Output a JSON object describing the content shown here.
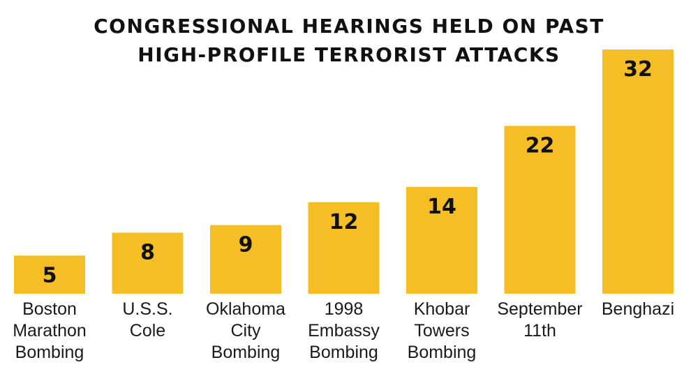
{
  "chart_data": {
    "type": "bar",
    "title_lines": [
      "CONGRESSIONAL HEARINGS HELD ON PAST",
      "HIGH-PROFILE TERRORIST ATTACKS"
    ],
    "categories": [
      [
        "Boston",
        "Marathon",
        "Bombing"
      ],
      [
        "U.S.S.",
        "Cole"
      ],
      [
        "Oklahoma",
        "City",
        "Bombing"
      ],
      [
        "1998",
        "Embassy",
        "Bombing"
      ],
      [
        "Khobar",
        "Towers",
        "Bombing"
      ],
      [
        "September",
        "11th"
      ],
      [
        "Benghazi"
      ]
    ],
    "values": [
      5,
      8,
      9,
      12,
      14,
      22,
      32
    ],
    "xlabel": "",
    "ylabel": "",
    "ylim": [
      0,
      32
    ],
    "grid": false,
    "legend": "none",
    "colors": {
      "bar": "#F5BE27",
      "text": "#111111",
      "background": "#ffffff"
    }
  }
}
